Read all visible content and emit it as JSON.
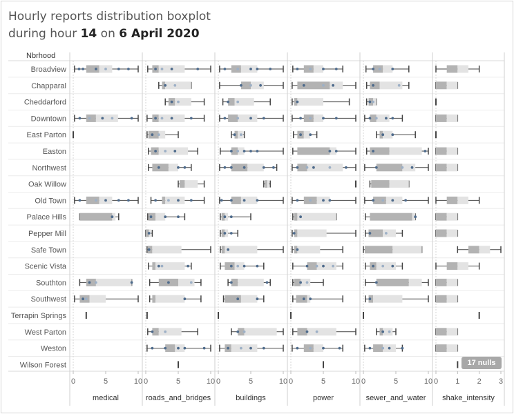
{
  "title": {
    "line1": "Hourly reports  distribution boxplot",
    "pre_hour": "during hour ",
    "hour": "14",
    "mid": " on ",
    "date": "6 April 2020"
  },
  "nulls_badge": "17 nulls",
  "chart_data": {
    "type": "boxplot",
    "row_header": "Nbrhood",
    "rows": [
      "Broadview",
      "Chapparal",
      "Cheddarford",
      "Downtown",
      "East Parton",
      "Easton",
      "Northwest",
      "Oak Willow",
      "Old Town",
      "Palace Hills",
      "Pepper Mill",
      "Safe Town",
      "Scenic Vista",
      "Southton",
      "Southwest",
      "Terrapin Springs",
      "West Parton",
      "Weston",
      "Wilson Forest"
    ],
    "colors": {
      "box_dark": "#b3b3b3",
      "box_light": "#e3e3e3",
      "whisker": "#444444",
      "point": "#4e6b8c",
      "point_light": "#9db0c6"
    },
    "panels": [
      {
        "label": "medical",
        "axis_max": 10,
        "ticks": [
          0,
          5,
          10
        ],
        "boxes": {
          "Broadview": [
            0.2,
            2,
            4,
            6,
            10
          ],
          "Downtown": [
            0.2,
            2,
            3.5,
            6.9,
            10
          ],
          "East Parton": [
            0,
            0,
            0,
            0,
            0
          ],
          "Old Town": [
            0.2,
            2,
            4,
            6,
            10
          ],
          "Palace Hills": [
            1,
            1,
            6,
            6.5,
            7
          ],
          "Southton": [
            1,
            2,
            3.5,
            9,
            9
          ],
          "Southwest": [
            0.2,
            1,
            2.5,
            5,
            10
          ],
          "Terrapin Springs": [
            2,
            2,
            2,
            2,
            2
          ]
        },
        "points": {
          "Broadview": [
            0.9,
            1.5,
            3.5,
            5,
            7,
            8.5
          ],
          "Downtown": [
            1,
            2.5,
            4.5,
            6,
            9
          ],
          "Old Town": [
            1,
            3.5,
            5,
            7,
            8.5
          ],
          "Palace Hills": [
            6
          ],
          "Southton": [
            2.5,
            3.5,
            9
          ],
          "Southwest": [
            1.5,
            2
          ]
        }
      },
      {
        "label": "roads_and_bridges",
        "axis_max": 10,
        "ticks": [
          0,
          5,
          10
        ],
        "boxes": {
          "Broadview": [
            0.3,
            1,
            2,
            6,
            10
          ],
          "Chapparal": [
            2,
            2.5,
            3,
            7,
            7
          ],
          "Cheddarford": [
            3,
            3.5,
            4.5,
            7,
            9
          ],
          "Downtown": [
            0.2,
            1,
            2,
            6,
            9
          ],
          "East Parton": [
            0.2,
            0.4,
            2,
            3,
            5
          ],
          "Easton": [
            0.4,
            0.8,
            2,
            6.5,
            8
          ],
          "Northwest": [
            0.4,
            1,
            3.5,
            5,
            7
          ],
          "Oak Willow": [
            5,
            5.2,
            6,
            8,
            9
          ],
          "Old Town": [
            0.8,
            2.5,
            3,
            6,
            9
          ],
          "Palace Hills": [
            0.3,
            0.4,
            1.5,
            3,
            6
          ],
          "Pepper Mill": [
            0,
            0,
            0.5,
            0.8,
            1
          ],
          "Safe Town": [
            0.2,
            0.3,
            1,
            5.5,
            10
          ],
          "Scenic Vista": [
            0.4,
            1,
            1.5,
            6,
            7
          ],
          "Southton": [
            0.6,
            2,
            5,
            7.5,
            8.5
          ],
          "Southwest": [
            0.6,
            1,
            1.5,
            6,
            8.5
          ],
          "Terrapin Springs": [
            0.2,
            0.2,
            0.2,
            0.2,
            0.2
          ],
          "West Parton": [
            0.3,
            1,
            2,
            5.5,
            8
          ],
          "Weston": [
            0.2,
            3,
            4.5,
            6,
            10
          ],
          "Wilson Forest": [
            5,
            5,
            5,
            5,
            5
          ]
        },
        "points": {
          "Broadview": [
            1.5,
            2.5,
            4,
            8
          ],
          "Chapparal": [
            3,
            4.5
          ],
          "Cheddarford": [
            4,
            5
          ],
          "Downtown": [
            1.5,
            2.5,
            4,
            7
          ],
          "East Parton": [
            1,
            2
          ],
          "Easton": [
            1.5,
            3,
            4.5
          ],
          "Northwest": [
            2,
            5,
            6
          ],
          "Old Town": [
            1.5,
            3.5,
            5,
            7
          ],
          "Palace Hills": [
            0.8,
            3,
            5
          ],
          "Pepper Mill": [
            0.5
          ],
          "Safe Town": [
            0.5
          ],
          "Scenic Vista": [
            2,
            2.5,
            6.5
          ],
          "Southton": [
            3.5,
            7
          ],
          "Southwest": [
            6
          ],
          "West Parton": [
            1,
            3
          ],
          "Weston": [
            1,
            3,
            5,
            6,
            9
          ]
        }
      },
      {
        "label": "buildings",
        "axis_max": 10,
        "ticks": [
          0,
          5,
          10
        ],
        "boxes": {
          "Broadview": [
            0.2,
            2,
            3.5,
            6,
            10
          ],
          "Chapparal": [
            0.2,
            3.5,
            5,
            7,
            10
          ],
          "Cheddarford": [
            0.7,
            1.5,
            2.5,
            5.5,
            8
          ],
          "Downtown": [
            0.2,
            1.5,
            3,
            6,
            10
          ],
          "East Parton": [
            2,
            2.5,
            3,
            3.8,
            4
          ],
          "Easton": [
            0.3,
            2,
            3,
            4,
            10
          ],
          "Northwest": [
            0.2,
            2,
            4.5,
            7,
            9
          ],
          "Oak Willow": [
            7,
            7.2,
            7.5,
            7.8,
            8
          ],
          "Old Town": [
            0.2,
            2,
            3.5,
            6,
            10
          ],
          "Palace Hills": [
            0.3,
            0.5,
            1,
            1.5,
            5
          ],
          "Pepper Mill": [
            0.3,
            0.5,
            1,
            1.5,
            3
          ],
          "Safe Town": [
            0.3,
            0.5,
            1,
            6,
            10
          ],
          "Scenic Vista": [
            0.3,
            1,
            2.5,
            4,
            7
          ],
          "Southton": [
            1.5,
            2,
            3,
            7,
            8
          ],
          "Southwest": [
            0.8,
            1,
            3.5,
            6,
            7
          ],
          "Terrapin Springs": [
            0,
            0,
            0,
            0,
            0
          ],
          "West Parton": [
            2,
            3,
            4,
            9,
            10
          ],
          "Weston": [
            0.2,
            1,
            2,
            6,
            10
          ]
        },
        "points": {
          "Broadview": [
            1,
            3,
            5,
            6,
            8
          ],
          "Chapparal": [
            3.5,
            5,
            6.5
          ],
          "Cheddarford": [
            1.5,
            3
          ],
          "Downtown": [
            1,
            3,
            5,
            7
          ],
          "East Parton": [
            2.5,
            3.5
          ],
          "Easton": [
            2,
            3,
            4,
            5,
            6
          ],
          "Northwest": [
            1,
            2,
            4,
            7,
            8.5
          ],
          "Old Town": [
            0.5,
            2,
            4,
            6
          ],
          "Palace Hills": [
            1,
            2
          ],
          "Pepper Mill": [
            1,
            2
          ],
          "Safe Town": [
            1.5
          ],
          "Scenic Vista": [
            2,
            3,
            4,
            6
          ],
          "Southton": [
            2,
            7.5
          ],
          "Southwest": [
            3,
            6
          ],
          "West Parton": [
            3,
            4
          ],
          "Weston": [
            1.5,
            3.5,
            5,
            7
          ]
        }
      },
      {
        "label": "power",
        "axis_max": 10,
        "ticks": [
          0,
          5,
          10
        ],
        "boxes": {
          "Broadview": [
            0.3,
            2,
            3.5,
            5,
            8
          ],
          "Chapparal": [
            0.2,
            1,
            6,
            8,
            10
          ],
          "Cheddarford": [
            0.2,
            0.5,
            1,
            5,
            9
          ],
          "Downtown": [
            0.2,
            2,
            3.5,
            5,
            10
          ],
          "East Parton": [
            0.4,
            1,
            2,
            3,
            4
          ],
          "Easton": [
            0.3,
            1,
            6,
            7,
            10
          ],
          "Northwest": [
            0.2,
            1,
            2.5,
            8,
            10
          ],
          "Oak Willow": [
            10,
            10,
            10,
            10,
            10
          ],
          "Old Town": [
            0.2,
            2,
            4,
            6,
            10
          ],
          "Palace Hills": [
            0.3,
            0.5,
            1,
            7,
            7
          ],
          "Pepper Mill": [
            0.2,
            0.5,
            1,
            5.5,
            10
          ],
          "Safe Town": [
            0.2,
            0.5,
            1,
            4.5,
            8
          ],
          "Scenic Vista": [
            0.3,
            2.5,
            4,
            7,
            8
          ],
          "Southton": [
            0.3,
            0.5,
            1.5,
            3,
            5
          ],
          "Southwest": [
            0.3,
            0.8,
            2.5,
            3,
            8
          ],
          "Terrapin Springs": [
            0,
            0,
            0,
            0,
            0
          ],
          "West Parton": [
            0.3,
            1,
            2.5,
            7,
            10
          ],
          "Weston": [
            0.2,
            2,
            3.5,
            5,
            8
          ],
          "Wilson Forest": [
            5,
            5,
            5,
            5,
            5
          ]
        },
        "points": {
          "Broadview": [
            1,
            3,
            5,
            7
          ],
          "Chapparal": [
            2,
            5,
            6.5
          ],
          "Cheddarford": [
            1
          ],
          "Downtown": [
            1.5,
            3,
            5,
            7
          ],
          "East Parton": [
            1.5,
            3
          ],
          "Easton": [
            6,
            7
          ],
          "Northwest": [
            1,
            2.5,
            3.5,
            6,
            8.5
          ],
          "Old Town": [
            1,
            3,
            5,
            6
          ],
          "Palace Hills": [
            1.5
          ],
          "Pepper Mill": [
            0.5
          ],
          "Safe Town": [
            1
          ],
          "Scenic Vista": [
            2.5,
            4,
            5,
            6.5
          ],
          "Southton": [
            1.5,
            2.5
          ],
          "Southwest": [
            2,
            3
          ],
          "West Parton": [
            2.5,
            4
          ],
          "Weston": [
            1,
            3,
            5,
            7.5
          ]
        }
      },
      {
        "label": "sewer_and_water",
        "axis_max": 10,
        "ticks": [
          0,
          5,
          10
        ],
        "boxes": {
          "Broadview": [
            0.4,
            1.5,
            3,
            4.5,
            7
          ],
          "Chapparal": [
            0.5,
            1,
            2.5,
            6,
            7
          ],
          "Cheddarford": [
            0.5,
            0.8,
            1.5,
            2,
            2
          ],
          "Downtown": [
            0.2,
            1,
            2,
            4,
            6
          ],
          "East Parton": [
            2,
            2.5,
            3,
            4.5,
            8
          ],
          "Easton": [
            0.5,
            1,
            4,
            9,
            10
          ],
          "Northwest": [
            0.2,
            2,
            6,
            8,
            10
          ],
          "Oak Willow": [
            1,
            1.2,
            4,
            7,
            7
          ],
          "Old Town": [
            0.2,
            1.5,
            3.5,
            6,
            10
          ],
          "Palace Hills": [
            0.3,
            1,
            7.5,
            8,
            8
          ],
          "Pepper Mill": [
            0.3,
            0.8,
            3,
            5,
            6
          ],
          "Safe Town": [
            0,
            0.2,
            4.5,
            9,
            9
          ],
          "Scenic Vista": [
            0.3,
            1,
            2,
            5,
            6
          ],
          "Southton": [
            0.3,
            2,
            7,
            9,
            10
          ],
          "Southwest": [
            0.3,
            0.8,
            1.5,
            6,
            10
          ],
          "Terrapin Springs": [
            0,
            0,
            0,
            0,
            0
          ],
          "West Parton": [
            2,
            2.5,
            3,
            4.5,
            5
          ],
          "Weston": [
            0.2,
            1.5,
            3,
            5,
            6
          ]
        },
        "points": {
          "Broadview": [
            1.5,
            2.5,
            4.5
          ],
          "Chapparal": [
            1.5,
            5.5
          ],
          "Cheddarford": [
            1,
            1.5
          ],
          "Downtown": [
            1,
            2,
            3.5,
            4.5
          ],
          "East Parton": [
            3,
            4.5
          ],
          "Easton": [
            1.5,
            9.5
          ],
          "Northwest": [
            2,
            6,
            7.5
          ],
          "Old Town": [
            1.5,
            3,
            4.5,
            6.5
          ],
          "Palace Hills": [
            8
          ],
          "Pepper Mill": [
            1,
            3.5
          ],
          "Scenic Vista": [
            1.5,
            3,
            4.5
          ],
          "Southton": [
            2
          ],
          "Southwest": [
            1
          ],
          "West Parton": [
            3,
            4
          ],
          "Weston": [
            1,
            3,
            4,
            6
          ]
        }
      },
      {
        "label": "shake_intensity",
        "axis_max": 3,
        "ticks": [
          0,
          1,
          2,
          3
        ],
        "boxes": {
          "Broadview": [
            0,
            0.5,
            1,
            1.5,
            2
          ],
          "Chapparal": [
            0,
            0,
            0.5,
            1,
            1
          ],
          "Cheddarford": [
            0,
            0,
            0,
            0,
            0
          ],
          "Downtown": [
            0,
            0,
            0.5,
            1,
            1
          ],
          "East Parton": [
            0,
            0,
            0,
            0,
            0
          ],
          "Easton": [
            0,
            0,
            0.5,
            1,
            1
          ],
          "Northwest": [
            0,
            0,
            0.5,
            1,
            1
          ],
          "Old Town": [
            0,
            0.5,
            1,
            1.5,
            2
          ],
          "Palace Hills": [
            0,
            0,
            0.5,
            1,
            1
          ],
          "Pepper Mill": [
            0,
            0,
            0.5,
            1,
            1
          ],
          "Safe Town": [
            1,
            1.5,
            2,
            2.5,
            3
          ],
          "Scenic Vista": [
            0,
            0.5,
            1,
            1.5,
            2
          ],
          "Southton": [
            0,
            0,
            0.5,
            1,
            1
          ],
          "Southwest": [
            0,
            0,
            0.5,
            1,
            1
          ],
          "Terrapin Springs": [
            2,
            2,
            2,
            2,
            2
          ],
          "West Parton": [
            0,
            0,
            0.5,
            1,
            1
          ],
          "Weston": [
            0,
            0,
            0.5,
            1,
            1
          ],
          "Wilson Forest": [
            1,
            1,
            1,
            1,
            1
          ]
        },
        "points": {}
      }
    ]
  }
}
